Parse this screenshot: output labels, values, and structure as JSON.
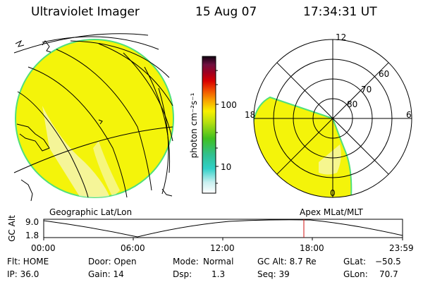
{
  "header": {
    "title": "Ultraviolet Imager",
    "date": "15 Aug 07",
    "time": "17:34:31 UT"
  },
  "colorbar": {
    "unit_label": "photon cm⁻²s⁻¹",
    "ticks": [
      "100",
      "10"
    ]
  },
  "polar_plot": {
    "mlt_labels": {
      "top": "12",
      "left": "18",
      "right": "6",
      "bottom": "0"
    },
    "lat_labels": [
      "60",
      "70",
      "80"
    ]
  },
  "map_labels": {
    "left": "Geographic Lat/Lon",
    "right": "Apex MLat/MLT"
  },
  "timeline": {
    "axis_label": "GC Alt",
    "ytick_top": "9.0",
    "ytick_bottom": "1.8",
    "xticks": [
      "00:00",
      "06:00",
      "12:00",
      "18:00",
      "23:59"
    ]
  },
  "status": {
    "flt": "Flt: HOME",
    "door": "Door: Open",
    "mode_label": "Mode:",
    "mode_value": "Normal",
    "gc_alt": "GC Alt: 8.7 Re",
    "glat_label": "GLat:",
    "glat_value": "−50.5",
    "ip": "IP: 36.0",
    "gain": "Gain: 14",
    "dsp_label": "Dsp:",
    "dsp_value": "1.3",
    "seq": "Seq: 39",
    "glon_label": "GLon:",
    "glon_value": "70.7"
  },
  "colors": {
    "image_fill": "#f4f40a",
    "image_edge": "#50e07a",
    "marker": "#d01010"
  }
}
